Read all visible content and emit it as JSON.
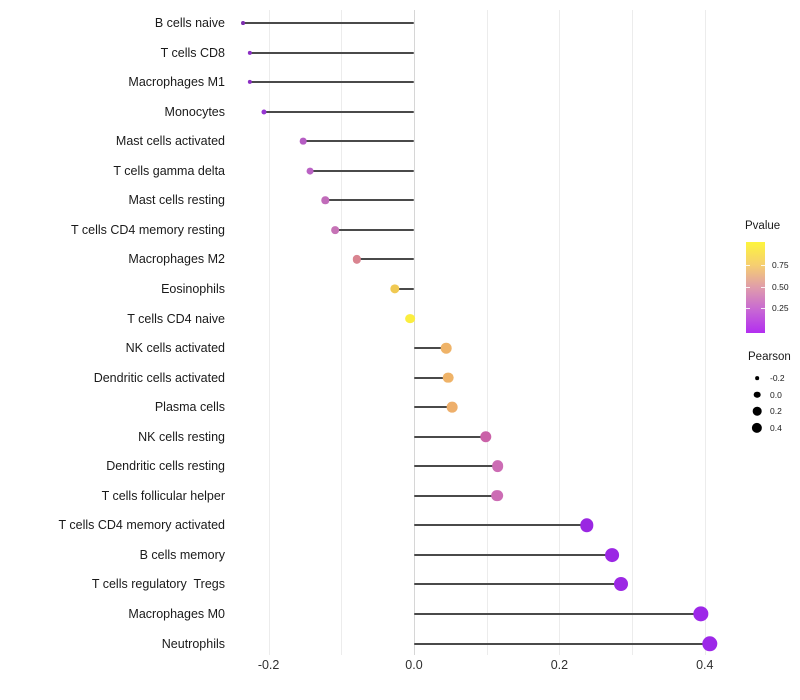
{
  "chart_data": {
    "type": "lollipop",
    "title": "",
    "xlabel": "",
    "ylabel": "",
    "xlim": [
      -0.26,
      0.45
    ],
    "grid": "vertical-light",
    "x_ticks": [
      {
        "label": "-0.2",
        "value": -0.2
      },
      {
        "label": "0.0",
        "value": 0.0
      },
      {
        "label": "0.2",
        "value": 0.2
      },
      {
        "label": "0.4",
        "value": 0.4
      }
    ],
    "gridline_values": [
      -0.2,
      -0.1,
      0.0,
      0.1,
      0.2,
      0.3,
      0.4
    ],
    "points": [
      {
        "label": "B cells naive",
        "pearson": -0.235,
        "pvalue_color": "#7d2fae"
      },
      {
        "label": "T cells CD8",
        "pearson": -0.226,
        "pvalue_color": "#8c2fc4"
      },
      {
        "label": "Macrophages M1",
        "pearson": -0.226,
        "pvalue_color": "#8c2fc4"
      },
      {
        "label": "Monocytes",
        "pearson": -0.206,
        "pvalue_color": "#9636d2"
      },
      {
        "label": "Mast cells activated",
        "pearson": -0.152,
        "pvalue_color": "#b55cc3"
      },
      {
        "label": "T cells gamma delta",
        "pearson": -0.143,
        "pvalue_color": "#ba62c4"
      },
      {
        "label": "Mast cells resting",
        "pearson": -0.122,
        "pvalue_color": "#c16cba"
      },
      {
        "label": "T cells CD4 memory resting",
        "pearson": -0.108,
        "pvalue_color": "#c673b6"
      },
      {
        "label": "Macrophages M2",
        "pearson": -0.079,
        "pvalue_color": "#d98490"
      },
      {
        "label": "Eosinophils",
        "pearson": -0.026,
        "pvalue_color": "#f0c952"
      },
      {
        "label": "T cells CD4 naive",
        "pearson": -0.005,
        "pvalue_color": "#fbee3f"
      },
      {
        "label": "NK cells activated",
        "pearson": 0.044,
        "pvalue_color": "#efb368"
      },
      {
        "label": "Dendritic cells activated",
        "pearson": 0.047,
        "pvalue_color": "#efb368"
      },
      {
        "label": "Plasma cells",
        "pearson": 0.052,
        "pvalue_color": "#eeaf6b"
      },
      {
        "label": "NK cells resting",
        "pearson": 0.099,
        "pvalue_color": "#ca62a8"
      },
      {
        "label": "Dendritic cells resting",
        "pearson": 0.115,
        "pvalue_color": "#cc6cb4"
      },
      {
        "label": "T cells follicular helper",
        "pearson": 0.114,
        "pvalue_color": "#cc6cb4"
      },
      {
        "label": "T cells CD4 memory activated",
        "pearson": 0.238,
        "pvalue_color": "#9a27e2"
      },
      {
        "label": "B cells memory",
        "pearson": 0.273,
        "pvalue_color": "#9b27e4"
      },
      {
        "label": "T cells regulatory  Tregs",
        "pearson": 0.285,
        "pvalue_color": "#9c28e4"
      },
      {
        "label": "Macrophages M0",
        "pearson": 0.395,
        "pvalue_color": "#9d28e8"
      },
      {
        "label": "Neutrophils",
        "pearson": 0.407,
        "pvalue_color": "#9d28e8"
      }
    ],
    "legend": {
      "position": "right",
      "pvalue": {
        "title": "Pvalue",
        "tick_labels": [
          "0.75",
          "0.50",
          "0.25"
        ],
        "gradient_top_to_bottom": [
          "#fdf53d",
          "#f6cf70",
          "#df9cab",
          "#c767d4",
          "#b32ef0"
        ]
      },
      "pearson": {
        "title": "Pearson",
        "size_items": [
          {
            "label": "-0.2",
            "value": -0.2
          },
          {
            "label": "0.0",
            "value": 0.0
          },
          {
            "label": "0.2",
            "value": 0.2
          },
          {
            "label": "0.4",
            "value": 0.4
          }
        ]
      }
    }
  }
}
